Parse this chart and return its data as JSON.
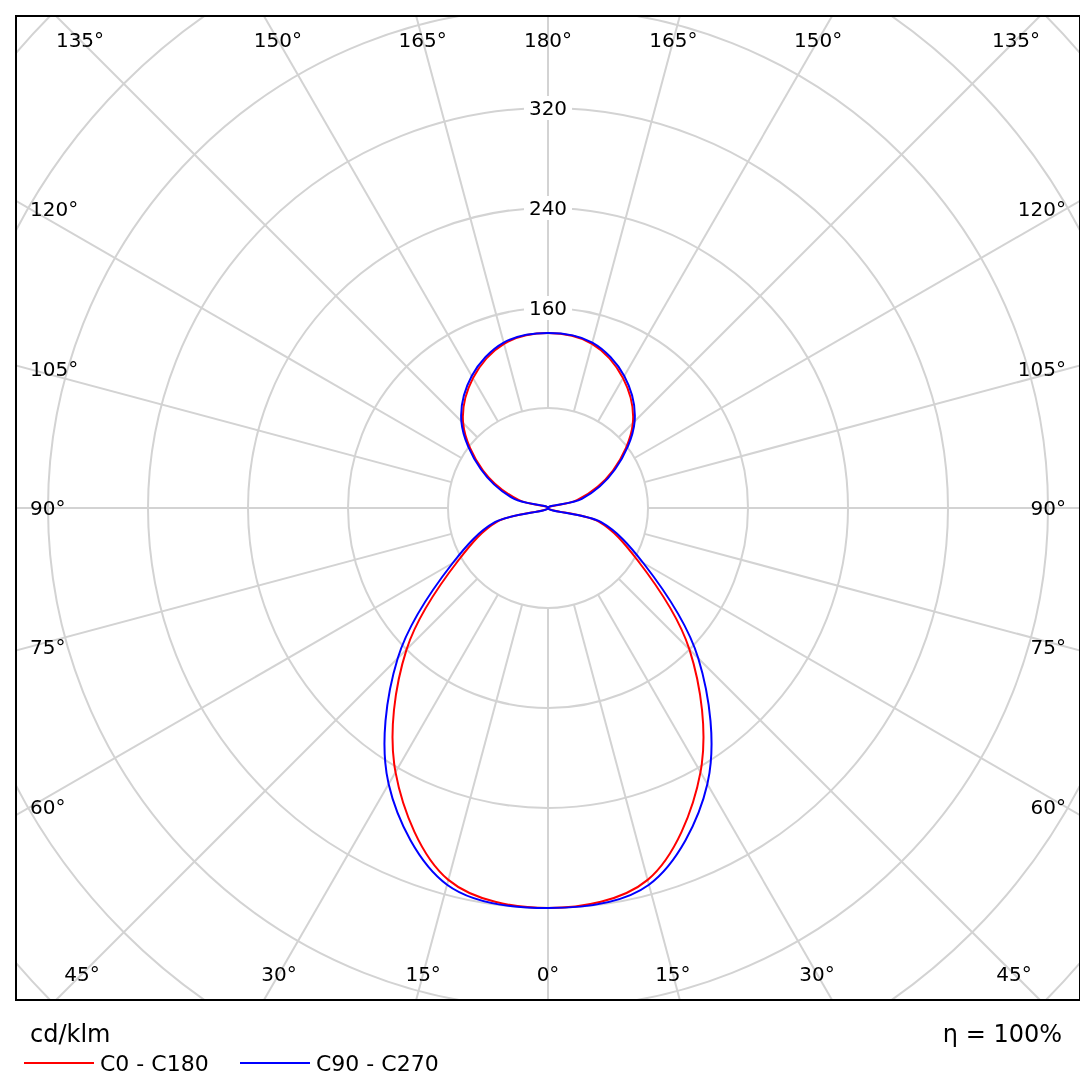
{
  "chart_data": {
    "type": "radar",
    "ylabel": "cd/klm",
    "annotations": [
      "η = 100%"
    ],
    "categories": [
      "180°",
      "165°",
      "150°",
      "135°",
      "120°",
      "105°",
      "90°",
      "75°",
      "60°",
      "45°",
      "30°",
      "15°",
      "0°",
      "15°",
      "30°",
      "45°",
      "60°",
      "75°",
      "90°",
      "105°",
      "120°",
      "135°",
      "150°",
      "165°"
    ],
    "series": [
      {
        "name": "C0 - C180",
        "color": "#ff0000",
        "values": [
          140,
          136,
          120,
          96,
          60,
          24,
          0,
          42,
          82,
          160,
          244,
          308,
          320,
          308,
          244,
          160,
          82,
          42,
          0,
          24,
          60,
          96,
          120,
          136
        ]
      },
      {
        "name": "C90 - C270",
        "color": "#0000ff",
        "values": [
          140,
          137,
          122,
          98,
          62,
          28,
          0,
          44,
          88,
          170,
          255,
          312,
          320,
          312,
          255,
          170,
          88,
          44,
          0,
          28,
          62,
          98,
          122,
          137
        ]
      }
    ],
    "ylim": [
      0,
      560
    ],
    "yticks": [
      160,
      240,
      320
    ],
    "grid": true,
    "legend": "bottom"
  }
}
